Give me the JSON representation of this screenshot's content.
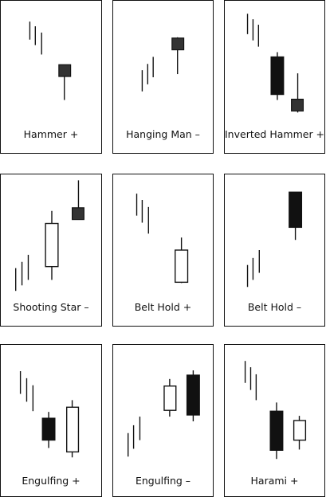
{
  "colors": {
    "border": "#111111",
    "bearish_body": "#111111",
    "bullish_body": "#ffffff",
    "doji_gray_body": "#333333"
  },
  "patterns": [
    {
      "label": "Hammer +"
    },
    {
      "label": "Hanging Man –"
    },
    {
      "label": "Inverted Hammer +"
    },
    {
      "label": "Shooting Star –"
    },
    {
      "label": "Belt Hold +"
    },
    {
      "label": "Belt Hold –"
    },
    {
      "label": "Engulfing +"
    },
    {
      "label": "Engulfing –"
    },
    {
      "label": "Harami +"
    }
  ]
}
